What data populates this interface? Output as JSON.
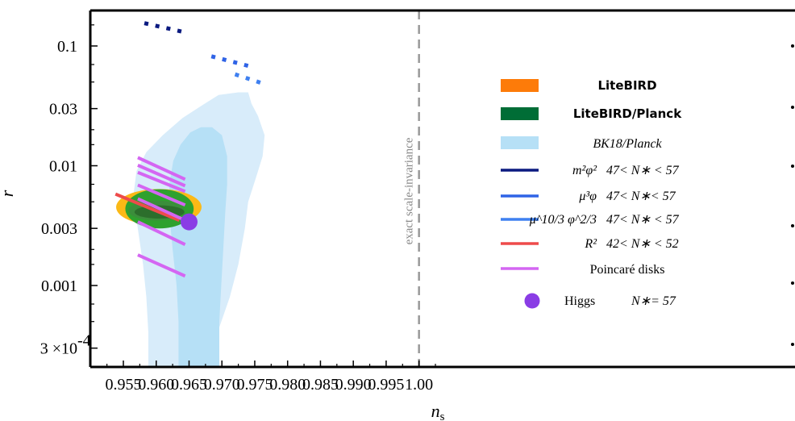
{
  "chart_data": {
    "type": "contour",
    "xlabel": "n",
    "xlabel_sub": "s",
    "ylabel": "r",
    "xlim": [
      0.9515,
      1.003
    ],
    "ylim": [
      0.0002,
      0.2
    ],
    "y_scale": "log",
    "x_ticks": [
      0.955,
      0.96,
      0.965,
      0.97,
      0.975,
      0.98,
      0.985,
      0.99,
      0.995,
      1.0
    ],
    "x_tick_labels": [
      "0.955",
      "0.960",
      "0.965",
      "0.970",
      "0.975",
      "0.980",
      "0.985",
      "0.990",
      "0.995",
      "1.00"
    ],
    "y_ticks": [
      0.1,
      0.03,
      0.01,
      0.003,
      0.001,
      0.0003
    ],
    "y_tick_labels": [
      "0.1",
      "0.03",
      "0.01",
      "0.003",
      "0.001",
      "3 ×10"
    ],
    "y_tick_exp": "-4",
    "annotation": {
      "text": "exact scale-invariance",
      "x": 1.0
    },
    "regions": [
      {
        "name": "BK18/Planck",
        "color": "#d8ecfa",
        "level": "95%",
        "x": [
          0.9588,
          0.9588,
          0.9585,
          0.958,
          0.9572,
          0.9565,
          0.957,
          0.9585,
          0.961,
          0.964,
          0.967,
          0.9695,
          0.9725,
          0.974,
          0.9745,
          0.9755,
          0.9765,
          0.9762,
          0.9752,
          0.974,
          0.9735,
          0.9725,
          0.9712,
          0.9693,
          0.9673,
          0.9648,
          0.962,
          0.96,
          0.9588
        ],
        "y": [
          0.00021,
          0.0004,
          0.0008,
          0.0015,
          0.003,
          0.0055,
          0.009,
          0.013,
          0.018,
          0.025,
          0.032,
          0.039,
          0.041,
          0.041,
          0.033,
          0.026,
          0.018,
          0.012,
          0.008,
          0.005,
          0.003,
          0.0015,
          0.0008,
          0.0004,
          0.00021,
          0.00021,
          0.00021,
          0.00021,
          0.00021
        ]
      },
      {
        "name": "BK18/Planck",
        "color": "#b6e0f6",
        "level": "68%",
        "x": [
          0.9634,
          0.9634,
          0.9631,
          0.9625,
          0.962,
          0.962,
          0.9626,
          0.9637,
          0.9652,
          0.9668,
          0.9685,
          0.97,
          0.9708,
          0.9708,
          0.9705,
          0.9702,
          0.9699,
          0.9696,
          0.9696,
          0.9665,
          0.9634
        ],
        "y": [
          0.00021,
          0.0005,
          0.001,
          0.002,
          0.004,
          0.007,
          0.011,
          0.015,
          0.019,
          0.021,
          0.021,
          0.018,
          0.012,
          0.007,
          0.004,
          0.002,
          0.001,
          0.0005,
          0.00021,
          0.00021,
          0.00021
        ]
      },
      {
        "name": "LiteBIRD",
        "color": "#fbb916",
        "level": "95%",
        "cx": 0.9604,
        "cy": 0.00451,
        "rx": 0.0065,
        "ry_log10": 0.1515
      },
      {
        "name": "LiteBIRD/Planck",
        "color": "#2ea12e",
        "level": "95%",
        "cx": 0.9605,
        "cy": 0.00437,
        "rx": 0.0052,
        "ry_log10": 0.1637
      },
      {
        "name": "LiteBIRD/Planck",
        "color": "#3b8e3b",
        "level": "inner",
        "cx": 0.96,
        "cy": 0.00423,
        "rx": 0.0042,
        "ry_log10": 0.0834
      },
      {
        "name": "LiteBIRD/Planck",
        "color": "#2c6e2c",
        "level": "68%",
        "cx": 0.9605,
        "cy": 0.00411,
        "rx": 0.0038,
        "ry_log10": 0.0553
      }
    ],
    "series": [
      {
        "legend": "m2phi2",
        "color": "#0b1a80",
        "dash": "dot",
        "x": [
          0.9582,
          0.9644
        ],
        "y": [
          0.155,
          0.13
        ]
      },
      {
        "legend": "mu3phi",
        "color": "#2f63e6",
        "dash": "dot",
        "x": [
          0.9684,
          0.9741
        ],
        "y": [
          0.082,
          0.068
        ]
      },
      {
        "legend": "mu103phi23",
        "color": "#3f80f0",
        "dash": "dot",
        "x": [
          0.972,
          0.9763
        ],
        "y": [
          0.058,
          0.0485
        ]
      },
      {
        "legend": "R2",
        "color": "#ee4b4b",
        "dash": "solid",
        "x": [
          0.9538,
          0.9635
        ],
        "y": [
          0.0058,
          0.0035
        ]
      },
      {
        "legend": "Poincare",
        "color": "#d466f2",
        "dash": "solid",
        "x": [
          0.9572,
          0.9644
        ],
        "y": [
          0.0117,
          0.0077
        ]
      },
      {
        "legend": "Poincare",
        "color": "#d466f2",
        "dash": "solid",
        "x": [
          0.9572,
          0.9644
        ],
        "y": [
          0.0101,
          0.0068
        ]
      },
      {
        "legend": "Poincare",
        "color": "#d466f2",
        "dash": "solid",
        "x": [
          0.9572,
          0.9644
        ],
        "y": [
          0.0088,
          0.0061
        ]
      },
      {
        "legend": "Poincare",
        "color": "#d466f2",
        "dash": "solid",
        "x": [
          0.9572,
          0.9644
        ],
        "y": [
          0.0069,
          0.0047
        ]
      },
      {
        "legend": "Poincare",
        "color": "#d466f2",
        "dash": "solid",
        "x": [
          0.9572,
          0.9644
        ],
        "y": [
          0.0053,
          0.0035
        ]
      },
      {
        "legend": "Poincare",
        "color": "#d466f2",
        "dash": "solid",
        "x": [
          0.9572,
          0.9644
        ],
        "y": [
          0.0034,
          0.0022
        ]
      },
      {
        "legend": "Poincare",
        "color": "#d466f2",
        "dash": "solid",
        "x": [
          0.9572,
          0.9644
        ],
        "y": [
          0.0018,
          0.0012
        ]
      }
    ],
    "points": [
      {
        "legend": "Higgs",
        "color": "#8a3de5",
        "x": 0.965,
        "y": 0.0034
      }
    ],
    "legend_position": "right",
    "legend": [
      {
        "key": "litebird",
        "swatch": "patch",
        "color": "#fd7b09",
        "label": "LiteBIRD",
        "style": "bold"
      },
      {
        "key": "litebird_planck",
        "swatch": "patch",
        "color": "#006d36",
        "label": "LiteBIRD/Planck",
        "style": "bold"
      },
      {
        "key": "bk18",
        "swatch": "patch",
        "color": "#b6e0f6",
        "label": "BK18/Planck",
        "style": "italic"
      },
      {
        "key": "m2phi2",
        "swatch": "line",
        "color": "#0b1a80",
        "label": "m²φ²",
        "range": "47< N∗ < 57"
      },
      {
        "key": "mu3phi",
        "swatch": "line",
        "color": "#2f63e6",
        "label": "μ³φ",
        "range": "47< N∗< 57"
      },
      {
        "key": "mu103phi23",
        "swatch": "line",
        "color": "#3f80f0",
        "label": "μ^10/3 φ^2/3",
        "range": "47< N∗ < 57"
      },
      {
        "key": "r2",
        "swatch": "line",
        "color": "#ee4b4b",
        "label": "R²",
        "range": "42< N∗ < 52"
      },
      {
        "key": "poincare",
        "swatch": "line",
        "color": "#d466f2",
        "label": "Poincaré disks",
        "range": ""
      },
      {
        "key": "higgs",
        "swatch": "dot",
        "color": "#8a3de5",
        "label": "Higgs",
        "range": "N∗= 57"
      }
    ]
  }
}
